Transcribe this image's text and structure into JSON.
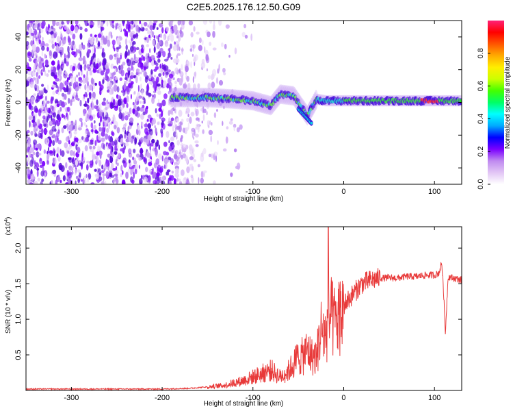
{
  "title": "C2E5.2025.176.12.50.G09",
  "chart_data": [
    {
      "type": "heatmap",
      "xlabel": "Height of straight line (km)",
      "ylabel": "Frequency (Hz)",
      "xlim": [
        -350,
        130
      ],
      "ylim": [
        -50,
        50
      ],
      "x_ticks": [
        -300,
        -200,
        -100,
        0,
        100
      ],
      "y_ticks": [
        -40,
        -20,
        0,
        20,
        40
      ],
      "colorbar": {
        "label": "Normalized spectral amplitude",
        "range": [
          0,
          1
        ],
        "ticks": [
          "0.0",
          "0.2",
          "0.4",
          "0.6",
          "0.8"
        ],
        "colormap": [
          "#ffffff",
          "#e2c6f5",
          "#c08af0",
          "#7a00ff",
          "#0000ff",
          "#00aaff",
          "#00ffff",
          "#00ff66",
          "#44ff00",
          "#ccff00",
          "#ffee00",
          "#ffaa00",
          "#ff5500",
          "#ff0000",
          "#ff2277"
        ]
      },
      "ridge": {
        "description_points": [
          {
            "x": -190,
            "y": 3
          },
          {
            "x": -150,
            "y": 3
          },
          {
            "x": -120,
            "y": 2
          },
          {
            "x": -100,
            "y": 1
          },
          {
            "x": -80,
            "y": -2
          },
          {
            "x": -70,
            "y": 5
          },
          {
            "x": -55,
            "y": 4
          },
          {
            "x": -40,
            "y": -8
          },
          {
            "x": -30,
            "y": 2
          },
          {
            "x": -20,
            "y": 1
          },
          {
            "x": 0,
            "y": 1
          },
          {
            "x": 50,
            "y": 1
          },
          {
            "x": 100,
            "y": 1
          },
          {
            "x": 130,
            "y": 1
          }
        ]
      }
    },
    {
      "type": "line",
      "xlabel": "Height of straight line (km)",
      "ylabel": "SNR (10 * v/v)",
      "y_multiplier": "(x10",
      "y_multiplier_exp": "4",
      "y_multiplier_close": ")",
      "xlim": [
        -350,
        130
      ],
      "ylim": [
        0,
        2.3
      ],
      "x_ticks": [
        -300,
        -200,
        -100,
        0,
        100
      ],
      "y_ticks": [
        "0.5",
        "1.0",
        "1.5",
        "2.0"
      ],
      "line_color": "#e83a3a",
      "series": [
        {
          "x": [
            -350,
            -300,
            -250,
            -200,
            -170,
            -150,
            -130,
            -110,
            -100,
            -90,
            -80,
            -70,
            -60,
            -50,
            -45,
            -40,
            -35,
            -30,
            -25,
            -20,
            -15,
            -10,
            -5,
            0,
            10,
            20,
            30,
            40,
            50,
            60,
            70,
            80,
            90,
            100,
            105,
            108,
            110,
            112,
            115,
            120,
            130
          ],
          "values": [
            0.02,
            0.02,
            0.02,
            0.02,
            0.03,
            0.05,
            0.08,
            0.15,
            0.2,
            0.25,
            0.3,
            0.2,
            0.3,
            0.5,
            0.5,
            0.6,
            0.5,
            0.5,
            0.9,
            0.8,
            1.1,
            1.0,
            1.1,
            1.2,
            1.35,
            1.5,
            1.55,
            1.58,
            1.58,
            1.58,
            1.6,
            1.6,
            1.62,
            1.62,
            1.65,
            1.8,
            1.4,
            0.8,
            1.6,
            1.58,
            1.55
          ]
        }
      ],
      "spike": {
        "x": -17,
        "value": 2.3
      }
    }
  ]
}
